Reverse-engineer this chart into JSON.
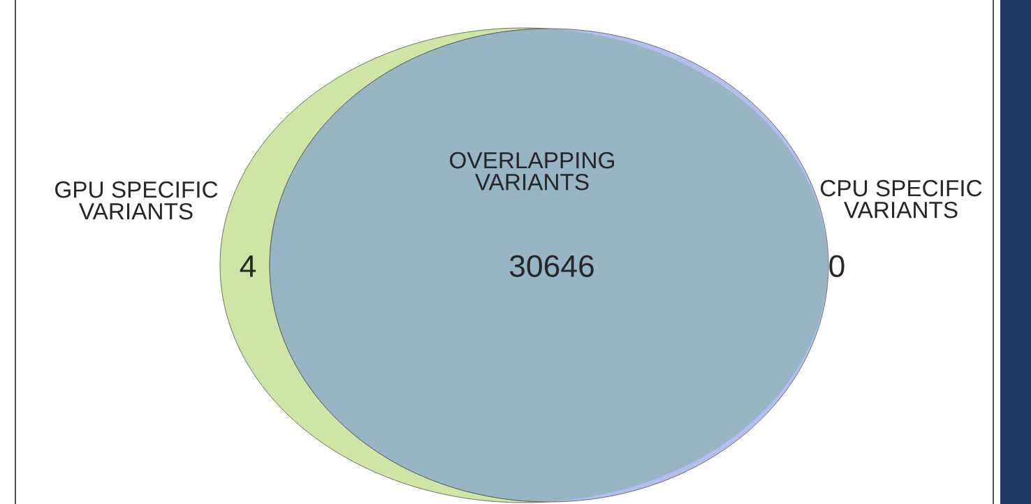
{
  "chart_data": {
    "type": "other",
    "categories": [
      "GPU SPECIFIC\nVARIANTS",
      "OVERLAPPING\nVARIANTS",
      "CPU SPECIFIC\nVARIANTS"
    ],
    "values": [
      4,
      30646,
      0
    ],
    "data_labels": true,
    "colors": [
      "#cfe5a5",
      "#98b5c4",
      "#b3bff0"
    ]
  }
}
